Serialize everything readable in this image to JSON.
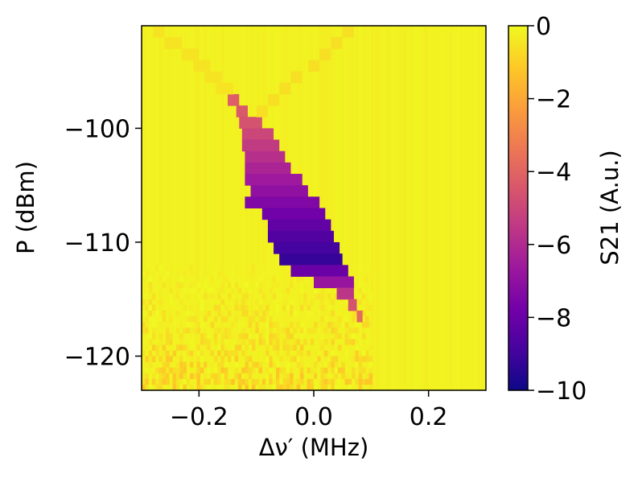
{
  "chart_data": {
    "type": "heatmap",
    "title": "",
    "xlabel": "Δν′  (MHz)",
    "ylabel": "P (dBm)",
    "xlim": [
      -0.3,
      0.3
    ],
    "ylim": [
      -123,
      -91
    ],
    "x_ticks": [
      -0.2,
      0.0,
      0.2
    ],
    "x_tick_labels": [
      "−0.2",
      "0.0",
      "0.2"
    ],
    "y_ticks": [
      -100,
      -110,
      -120
    ],
    "y_tick_labels": [
      "−100",
      "−110",
      "−120"
    ],
    "colorbar": {
      "label": "S21 (A.u.)",
      "range": [
        -10,
        0
      ],
      "ticks": [
        0,
        -2,
        -4,
        -6,
        -8,
        -10
      ],
      "tick_labels": [
        "0",
        "−2",
        "−4",
        "−6",
        "−8",
        "−10"
      ],
      "colormap": "plasma"
    },
    "background_value": -0.1,
    "features": [
      {
        "name": "resonance dip",
        "rows": [
          {
            "P": -97.5,
            "x_min": -0.15,
            "x_max": -0.13,
            "value": -4.2
          },
          {
            "P": -98.5,
            "x_min": -0.135,
            "x_max": -0.115,
            "value": -4.4
          },
          {
            "P": -99.5,
            "x_min": -0.13,
            "x_max": -0.09,
            "value": -4.6
          },
          {
            "P": -100.5,
            "x_min": -0.125,
            "x_max": -0.07,
            "value": -5.0
          },
          {
            "P": -101.5,
            "x_min": -0.125,
            "x_max": -0.06,
            "value": -5.4
          },
          {
            "P": -102.5,
            "x_min": -0.12,
            "x_max": -0.05,
            "value": -5.8
          },
          {
            "P": -103.5,
            "x_min": -0.12,
            "x_max": -0.04,
            "value": -6.2
          },
          {
            "P": -104.5,
            "x_min": -0.12,
            "x_max": -0.02,
            "value": -6.6
          },
          {
            "P": -105.5,
            "x_min": -0.11,
            "x_max": -0.01,
            "value": -7.0
          },
          {
            "P": -106.5,
            "x_min": -0.12,
            "x_max": 0.01,
            "value": -7.4
          },
          {
            "P": -107.5,
            "x_min": -0.09,
            "x_max": 0.02,
            "value": -7.8
          },
          {
            "P": -108.5,
            "x_min": -0.08,
            "x_max": 0.03,
            "value": -8.2
          },
          {
            "P": -109.5,
            "x_min": -0.08,
            "x_max": 0.035,
            "value": -8.6
          },
          {
            "P": -110.5,
            "x_min": -0.07,
            "x_max": 0.045,
            "value": -8.9
          },
          {
            "P": -111.5,
            "x_min": -0.06,
            "x_max": 0.05,
            "value": -9.2
          },
          {
            "P": -112.5,
            "x_min": -0.04,
            "x_max": 0.06,
            "value": -8.0
          },
          {
            "P": -113.5,
            "x_min": 0.0,
            "x_max": 0.07,
            "value": -6.8
          },
          {
            "P": -114.5,
            "x_min": 0.04,
            "x_max": 0.07,
            "value": -5.6
          },
          {
            "P": -115.5,
            "x_min": 0.06,
            "x_max": 0.075,
            "value": -4.6
          },
          {
            "P": -116.5,
            "x_min": 0.075,
            "x_max": 0.085,
            "value": -3.8
          }
        ]
      },
      {
        "name": "left faint branch",
        "rows": [
          {
            "P": -91.5,
            "x_min": -0.28,
            "x_max": -0.26,
            "value": -0.5
          },
          {
            "P": -92.5,
            "x_min": -0.26,
            "x_max": -0.23,
            "value": -0.5
          },
          {
            "P": -93.5,
            "x_min": -0.23,
            "x_max": -0.2,
            "value": -0.5
          },
          {
            "P": -94.5,
            "x_min": -0.21,
            "x_max": -0.18,
            "value": -0.5
          },
          {
            "P": -95.5,
            "x_min": -0.19,
            "x_max": -0.16,
            "value": -0.5
          },
          {
            "P": -96.5,
            "x_min": -0.17,
            "x_max": -0.14,
            "value": -0.5
          }
        ]
      },
      {
        "name": "right faint branch",
        "rows": [
          {
            "P": -91.5,
            "x_min": 0.05,
            "x_max": 0.07,
            "value": -0.6
          },
          {
            "P": -92.5,
            "x_min": 0.03,
            "x_max": 0.05,
            "value": -0.6
          },
          {
            "P": -93.5,
            "x_min": 0.01,
            "x_max": 0.03,
            "value": -0.6
          },
          {
            "P": -94.5,
            "x_min": -0.01,
            "x_max": 0.01,
            "value": -0.6
          },
          {
            "P": -95.5,
            "x_min": -0.04,
            "x_max": -0.02,
            "value": -0.6
          },
          {
            "P": -96.5,
            "x_min": -0.06,
            "x_max": -0.04,
            "value": -0.6
          },
          {
            "P": -97.5,
            "x_min": -0.08,
            "x_max": -0.06,
            "value": -0.6
          },
          {
            "P": -98.5,
            "x_min": -0.1,
            "x_max": -0.08,
            "value": -0.6
          }
        ]
      },
      {
        "name": "low-power noise",
        "P_range": [
          -123,
          -112
        ],
        "x_range": [
          -0.3,
          0.1
        ],
        "value_range": [
          -1.0,
          0.0
        ]
      }
    ]
  }
}
